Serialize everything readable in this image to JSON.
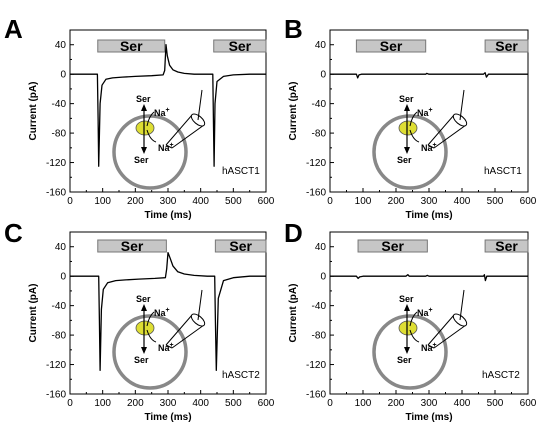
{
  "chart_data": [
    {
      "panel": "A",
      "type": "line",
      "xlabel": "Time (ms)",
      "ylabel": "Current (pA)",
      "xlim": [
        0,
        600
      ],
      "ylim": [
        -160,
        60
      ],
      "xticks": [
        "0",
        "100",
        "200",
        "300",
        "400",
        "500",
        "600"
      ],
      "yticks": [
        "40",
        "0",
        "-40",
        "-80",
        "-120",
        "-160"
      ],
      "applications": [
        {
          "label": "Ser",
          "start": 85,
          "end": 290
        },
        {
          "label": "Ser",
          "start": 440,
          "end": 600
        }
      ],
      "annotation": "hASCT1",
      "series": [
        {
          "x": [
            0,
            60,
            84,
            86,
            88,
            92,
            98,
            110,
            130,
            160,
            200,
            250,
            285,
            290,
            294,
            298,
            305,
            315,
            330,
            350,
            380,
            420,
            437,
            439,
            441,
            444,
            450,
            470,
            500,
            550,
            600
          ],
          "y": [
            0,
            0,
            0,
            -60,
            -125,
            -40,
            -15,
            -7,
            -5,
            -4,
            -3,
            -2,
            -1,
            5,
            40,
            25,
            12,
            6,
            3,
            1,
            0,
            0,
            0,
            -60,
            -125,
            -40,
            -10,
            -3,
            -1,
            0,
            0
          ]
        }
      ]
    },
    {
      "panel": "B",
      "type": "line",
      "xlabel": "Time (ms)",
      "ylabel": "Current (pA)",
      "xlim": [
        0,
        600
      ],
      "ylim": [
        -160,
        60
      ],
      "xticks": [
        "0",
        "100",
        "200",
        "300",
        "400",
        "500",
        "600"
      ],
      "yticks": [
        "40",
        "0",
        "-40",
        "-80",
        "-120",
        "-160"
      ],
      "applications": [
        {
          "label": "Ser",
          "start": 80,
          "end": 290
        },
        {
          "label": "Ser",
          "start": 470,
          "end": 600
        }
      ],
      "annotation": "hASCT1",
      "series": [
        {
          "x": [
            0,
            60,
            80,
            84,
            88,
            95,
            150,
            200,
            260,
            290,
            293,
            300,
            400,
            465,
            470,
            474,
            480,
            540,
            600
          ],
          "y": [
            0,
            0,
            0,
            -5,
            -1,
            0,
            0,
            0,
            0,
            0,
            1,
            0,
            0,
            0,
            2,
            -4,
            0,
            0,
            0
          ]
        }
      ]
    },
    {
      "panel": "C",
      "type": "line",
      "xlabel": "Time (ms)",
      "ylabel": "Current (pA)",
      "xlim": [
        0,
        600
      ],
      "ylim": [
        -160,
        60
      ],
      "xticks": [
        "0",
        "100",
        "200",
        "300",
        "400",
        "500",
        "600"
      ],
      "yticks": [
        "40",
        "0",
        "-40",
        "-80",
        "-120",
        "-160"
      ],
      "applications": [
        {
          "label": "Ser",
          "start": 85,
          "end": 295
        },
        {
          "label": "Ser",
          "start": 445,
          "end": 600
        }
      ],
      "annotation": "hASCT2",
      "series": [
        {
          "x": [
            0,
            60,
            88,
            90,
            92,
            96,
            102,
            115,
            140,
            170,
            210,
            260,
            292,
            296,
            300,
            306,
            315,
            330,
            350,
            380,
            420,
            443,
            445,
            448,
            454,
            470,
            500,
            550,
            600
          ],
          "y": [
            0,
            0,
            0,
            -60,
            -128,
            -45,
            -18,
            -9,
            -6,
            -5,
            -4,
            -3,
            -2,
            10,
            32,
            25,
            14,
            6,
            3,
            1,
            0,
            0,
            -60,
            -128,
            -30,
            -6,
            -2,
            0,
            0
          ]
        }
      ]
    },
    {
      "panel": "D",
      "type": "line",
      "xlabel": "Time (ms)",
      "ylabel": "Current (pA)",
      "xlim": [
        0,
        600
      ],
      "ylim": [
        -160,
        60
      ],
      "xticks": [
        "0",
        "100",
        "200",
        "300",
        "400",
        "500",
        "600"
      ],
      "yticks": [
        "40",
        "0",
        "-40",
        "-80",
        "-120",
        "-160"
      ],
      "applications": [
        {
          "label": "Ser",
          "start": 85,
          "end": 295
        },
        {
          "label": "Ser",
          "start": 470,
          "end": 600
        }
      ],
      "annotation": "hASCT2",
      "series": [
        {
          "x": [
            0,
            60,
            80,
            85,
            90,
            100,
            160,
            230,
            236,
            240,
            290,
            295,
            300,
            400,
            465,
            468,
            471,
            475,
            540,
            600
          ],
          "y": [
            0,
            0,
            0,
            -3,
            -1,
            0,
            0,
            0,
            2,
            0,
            0,
            1,
            0,
            0,
            0,
            2,
            -6,
            0,
            0,
            0
          ]
        }
      ]
    }
  ],
  "cell_diagram": {
    "substrate_top": "Ser",
    "sodium_top": "Na",
    "superscript": "+",
    "substrate_bottom": "Ser",
    "sodium_bottom": "Na",
    "membrane_color": "#888888",
    "transporter_color": "#dede33"
  },
  "colors": {
    "trace": "#000000",
    "bar_fill": "#c6c6c6",
    "bar_stroke": "#777777"
  }
}
